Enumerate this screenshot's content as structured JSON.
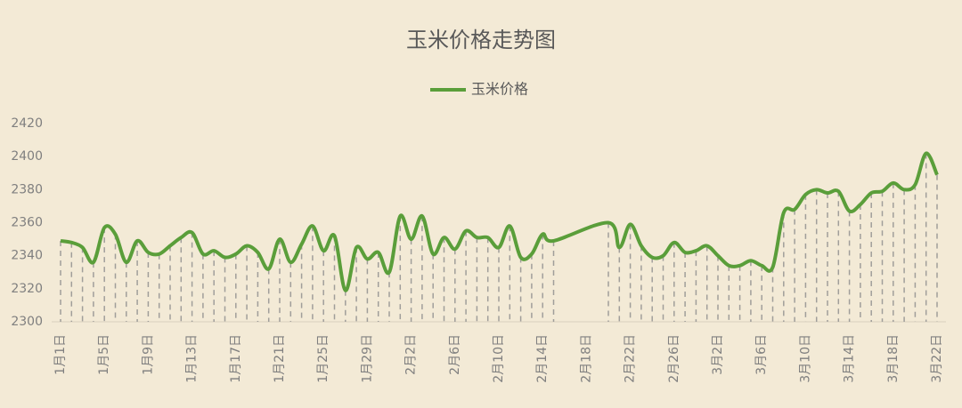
{
  "chart_data": {
    "type": "line",
    "title": "玉米价格走势图",
    "categories": [
      "1月1日",
      null,
      null,
      null,
      "1月5日",
      null,
      null,
      null,
      "1月9日",
      null,
      null,
      null,
      "1月13日",
      null,
      null,
      null,
      "1月17日",
      null,
      null,
      null,
      "1月21日",
      null,
      null,
      null,
      "1月25日",
      null,
      null,
      null,
      "1月29日",
      null,
      null,
      null,
      "2月2日",
      null,
      null,
      null,
      "2月6日",
      null,
      null,
      null,
      "2月10日",
      null,
      null,
      null,
      "2月14日",
      null,
      null,
      null,
      "2月18日",
      null,
      null,
      null,
      "2月22日",
      null,
      null,
      null,
      "2月26日",
      null,
      null,
      null,
      "3月2日",
      null,
      null,
      null,
      "3月6日",
      null,
      null,
      null,
      "3月10日",
      null,
      null,
      null,
      "3月14日",
      null,
      null,
      null,
      "3月18日",
      null,
      null,
      null,
      "3月22日"
    ],
    "series": [
      {
        "name": "玉米价格",
        "color": "#5a9e3a",
        "values": [
          2349,
          2348,
          2345,
          2336,
          2357,
          2353,
          2336,
          2349,
          2342,
          2341,
          2346,
          2351,
          2354,
          2341,
          2343,
          2339,
          2341,
          2346,
          2342,
          2332,
          2350,
          2336,
          2347,
          2358,
          2343,
          2352,
          2319,
          2345,
          2338,
          2342,
          2330,
          2364,
          2350,
          2364,
          2341,
          2351,
          2344,
          2355,
          2351,
          2351,
          2345,
          2358,
          2339,
          2341,
          2353,
          2349,
          null,
          null,
          null,
          null,
          2360,
          2345,
          2359,
          2346,
          2339,
          2340,
          2348,
          2342,
          2343,
          2346,
          2340,
          2334,
          2334,
          2337,
          2334,
          2333,
          2366,
          2368,
          2377,
          2380,
          2378,
          2379,
          2367,
          2371,
          2378,
          2379,
          2384,
          2380,
          2383,
          2402,
          2389
        ]
      }
    ],
    "ylim": [
      2300,
      2420
    ],
    "yticks": [
      2300,
      2320,
      2340,
      2360,
      2380,
      2400,
      2420
    ],
    "span_gaps": true,
    "drop_lines": true,
    "smooth": true,
    "legend": "top"
  }
}
